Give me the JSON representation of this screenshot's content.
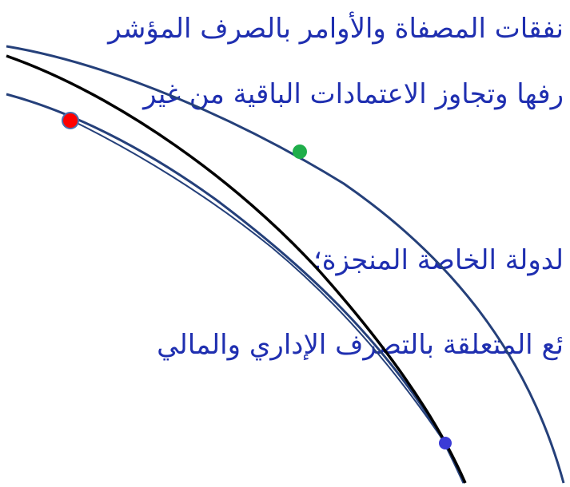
{
  "slide": {
    "lines": [
      "نفقات المصفاة والأوامر بالصرف المؤشر",
      "رفها وتجاوز الاعتمادات الباقية من غير",
      "لدولة الخاصة المنجزة؛",
      "ئع المتعلقة بالتصرف الإداري  والمالي"
    ]
  },
  "colors": {
    "text": "#1f2fb0",
    "curve": "#25407a",
    "main_curve": "#000000",
    "marker_red": "#ff0000",
    "marker_green": "#1fae4a",
    "marker_blue": "#3b3bd6"
  }
}
